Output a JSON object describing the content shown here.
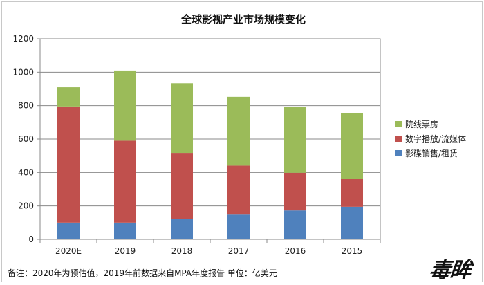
{
  "chart_data": {
    "type": "bar",
    "stacked": true,
    "title": "全球影视产业市场规模变化",
    "categories": [
      "2020E",
      "2019",
      "2018",
      "2017",
      "2016",
      "2015"
    ],
    "series": [
      {
        "name": "影碟销售/租赁",
        "color": "#4f81bd",
        "values": [
          100,
          100,
          122,
          148,
          173,
          195
        ]
      },
      {
        "name": "数字播放/流媒体",
        "color": "#c0504d",
        "values": [
          695,
          490,
          395,
          293,
          225,
          165
        ]
      },
      {
        "name": "院线票房",
        "color": "#9bbb59",
        "values": [
          115,
          420,
          417,
          412,
          395,
          395
        ]
      }
    ],
    "ylim": [
      0,
      1200
    ],
    "yticks": [
      0,
      200,
      400,
      600,
      800,
      1000,
      1200
    ],
    "grid": true,
    "legend": "right"
  },
  "footer": {
    "note": "备注：2020年为预估值，2019年前数据来自MPA年度报告    单位：亿美元",
    "logo": "毒眸"
  }
}
